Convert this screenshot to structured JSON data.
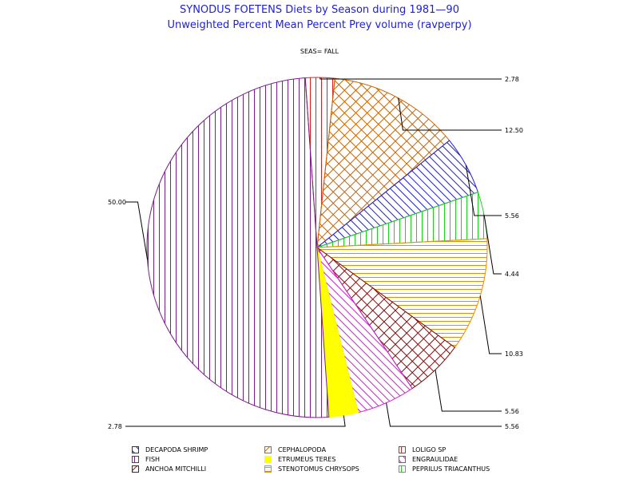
{
  "header": {
    "title_line1": "SYNODUS FOETENS Diets by Season during 1981—90",
    "title_line2": "Unweighted Percent Mean Percent Prey  volume (ravperpy)",
    "subtitle": "SEAS= FALL"
  },
  "chart_data": {
    "type": "pie",
    "title": "SYNODUS FOETENS Diets by Season during 1981—90",
    "subtitle": "Unweighted Percent Mean Percent Prey  volume (ravperpy)",
    "group_label": "SEAS= FALL",
    "slices": [
      {
        "name": "LOLIGO SP",
        "value": 2.78,
        "label": "2.78",
        "color": "#e0201f",
        "pattern": "vertical"
      },
      {
        "name": "CEPHALOPODA",
        "value": 12.5,
        "label": "12.50",
        "color": "#c86400",
        "pattern": "crosshatch"
      },
      {
        "name": "DECAPODA SHRIMP",
        "value": 5.56,
        "label": "5.56",
        "color": "#1f1fd6",
        "pattern": "diagonal"
      },
      {
        "name": "PEPRILUS TRIACANTHUS",
        "value": 4.44,
        "label": "4.44",
        "color": "#1ed21e",
        "pattern": "vertical"
      },
      {
        "name": "STENOTOMUS CHRYSOPS",
        "value": 10.83,
        "label": "10.83",
        "color": "#f08c00",
        "pattern": "horizontal"
      },
      {
        "name": "ANCHOA MITCHILLI",
        "value": 5.56,
        "label": "5.56",
        "color": "#7a1010",
        "pattern": "crosshatch"
      },
      {
        "name": "ENGRAULIDAE",
        "value": 5.56,
        "label": "5.56",
        "color": "#d21ed2",
        "pattern": "diagonal"
      },
      {
        "name": "ETRUMEUS TERES",
        "value": 2.78,
        "label": "2.78",
        "color": "#ffff00",
        "pattern": "solid"
      },
      {
        "name": "FISH",
        "value": 50.0,
        "label": "50.00",
        "color": "#7a1f8c",
        "pattern": "vertical"
      }
    ],
    "legend": [
      [
        "DECAPODA SHRIMP",
        "CEPHALOPODA",
        "LOLIGO SP"
      ],
      [
        "FISH",
        "ETRUMEUS TERES",
        "ENGRAULIDAE"
      ],
      [
        "ANCHOA MITCHILLI",
        "STENOTOMUS CHRYSOPS",
        "PEPRILUS TRIACANTHUS"
      ]
    ],
    "legend_position": "bottom"
  }
}
